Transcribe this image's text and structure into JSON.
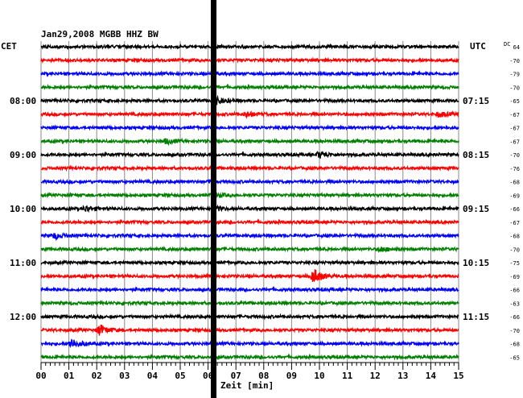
{
  "header": {
    "title": "Jan29,2008   MGBB HHZ BW",
    "left_timezone": "CET",
    "right_timezone": "UTC",
    "dc_label": "DC"
  },
  "chart_data": {
    "type": "seismogram-helicorder",
    "station": "MGBB",
    "channel": "HHZ",
    "network": "BW",
    "date": "Jan29,2008",
    "xlabel": "Zeit [min]",
    "xlim": [
      0,
      15
    ],
    "x_ticks": [
      "00",
      "01",
      "02",
      "03",
      "04",
      "05",
      "06",
      "07",
      "08",
      "09",
      "10",
      "11",
      "12",
      "13",
      "14",
      "15"
    ],
    "trace_colors": [
      "#000000",
      "#ff0000",
      "#0000ff",
      "#008000"
    ],
    "left_hour_labels": [
      {
        "row": 4,
        "label": "08:00"
      },
      {
        "row": 8,
        "label": "09:00"
      },
      {
        "row": 12,
        "label": "10:00"
      },
      {
        "row": 16,
        "label": "11:00"
      },
      {
        "row": 20,
        "label": "12:00"
      }
    ],
    "right_hour_labels": [
      {
        "row": 4,
        "label": "07:15"
      },
      {
        "row": 8,
        "label": "08:15"
      },
      {
        "row": 12,
        "label": "09:15"
      },
      {
        "row": 16,
        "label": "10:15"
      },
      {
        "row": 20,
        "label": "11:15"
      }
    ],
    "dc_offsets": [
      "64",
      "-70",
      "-79",
      "-70",
      "-65",
      "-67",
      "-67",
      "-67",
      "-70",
      "-76",
      "-68",
      "-69",
      "-66",
      "-67",
      "-68",
      "-70",
      "-75",
      "-69",
      "-66",
      "-63",
      "-66",
      "-70",
      "-68",
      "-65"
    ],
    "gap_marker_minute": 6.2,
    "events": [
      {
        "row": 4,
        "minute": 6.2,
        "amplitude": 3
      },
      {
        "row": 5,
        "minute": 7.4,
        "amplitude": 1.5
      },
      {
        "row": 5,
        "minute": 14.3,
        "amplitude": 1.5
      },
      {
        "row": 7,
        "minute": 4.5,
        "amplitude": 1.3
      },
      {
        "row": 8,
        "minute": 10.0,
        "amplitude": 1.7
      },
      {
        "row": 11,
        "minute": 6.2,
        "amplitude": 1.5
      },
      {
        "row": 12,
        "minute": 1.6,
        "amplitude": 1.5
      },
      {
        "row": 12,
        "minute": 6.2,
        "amplitude": 1.5
      },
      {
        "row": 14,
        "minute": 0.5,
        "amplitude": 1.6
      },
      {
        "row": 15,
        "minute": 12.2,
        "amplitude": 1.3
      },
      {
        "row": 17,
        "minute": 9.8,
        "amplitude": 4
      },
      {
        "row": 21,
        "minute": 2.1,
        "amplitude": 3
      },
      {
        "row": 22,
        "minute": 1.1,
        "amplitude": 2.8
      }
    ]
  }
}
